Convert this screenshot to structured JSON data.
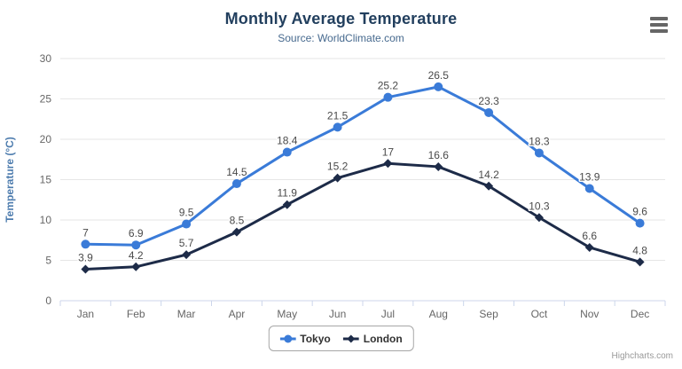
{
  "header": {
    "title": "Monthly Average Temperature",
    "subtitle": "Source: WorldClimate.com"
  },
  "credits": "Highcharts.com",
  "menu_icon": "hamburger-menu",
  "colors": {
    "title": "#223f5e",
    "subtitle": "#46698e",
    "axis_label": "#666666",
    "yaxis_title": "#4d7cae",
    "grid": "#e6e6e6",
    "axis_line": "#ccd6eb",
    "data_label": "#4a4a4a",
    "legend_text": "#333333",
    "legend_border": "#a6a6a6",
    "credits_text": "#999999",
    "menu_icon": "#666666",
    "tokyo": "#3a7bd8",
    "london": "#1d2b48"
  },
  "chart_data": {
    "type": "line",
    "title": "Monthly Average Temperature",
    "subtitle": "Source: WorldClimate.com",
    "categories": [
      "Jan",
      "Feb",
      "Mar",
      "Apr",
      "May",
      "Jun",
      "Jul",
      "Aug",
      "Sep",
      "Oct",
      "Nov",
      "Dec"
    ],
    "series": [
      {
        "name": "Tokyo",
        "marker": "circle",
        "color": "#3a7bd8",
        "values": [
          7,
          6.9,
          9.5,
          14.5,
          18.4,
          21.5,
          25.2,
          26.5,
          23.3,
          18.3,
          13.9,
          9.6
        ]
      },
      {
        "name": "London",
        "marker": "diamond",
        "color": "#1d2b48",
        "values": [
          3.9,
          4.2,
          5.7,
          8.5,
          11.9,
          15.2,
          17,
          16.6,
          14.2,
          10.3,
          6.6,
          4.8
        ]
      }
    ],
    "xlabel": "",
    "ylabel": "Temperature (°C)",
    "ylim": [
      0,
      30
    ],
    "ytick_interval": 5,
    "grid": true,
    "data_labels": true,
    "legend_position": "bottom-center"
  }
}
